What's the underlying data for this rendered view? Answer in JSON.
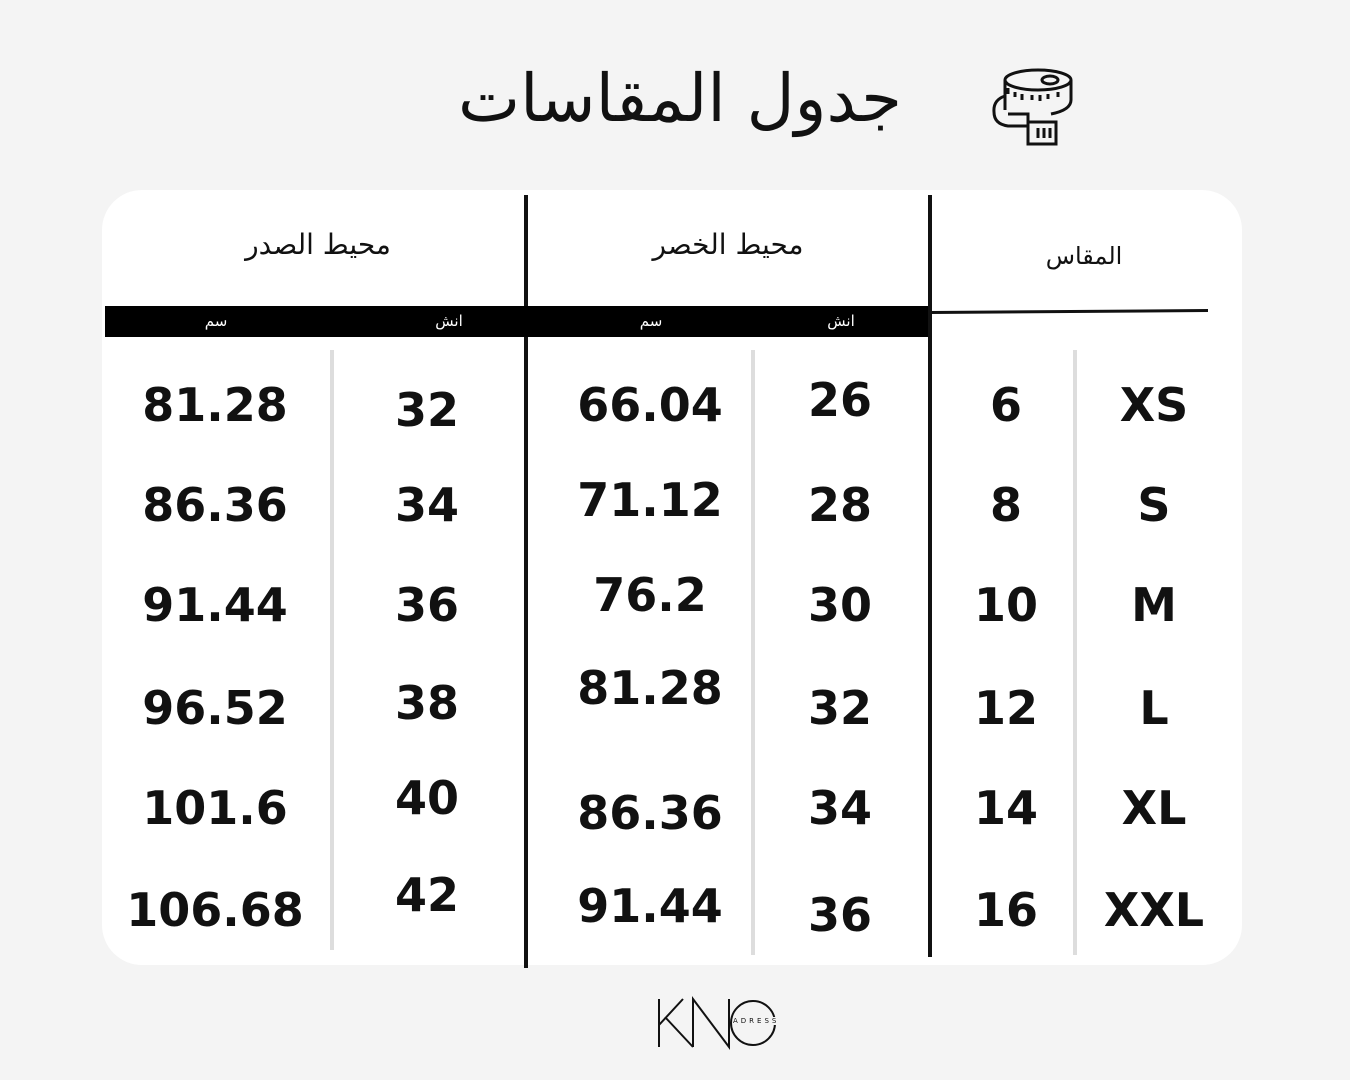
{
  "title": "جدول المقاسات",
  "icons": {
    "tape": "measuring-tape-icon"
  },
  "headers": {
    "size": "المقاس",
    "waist": "محيط الخصر",
    "chest": "محيط الصدر"
  },
  "units": {
    "inch": "انش",
    "cm": "سم"
  },
  "rows": [
    {
      "size": "XS",
      "num": "6",
      "waist_in": "26",
      "waist_cm": "66.04",
      "chest_in": "32",
      "chest_cm": "81.28"
    },
    {
      "size": "S",
      "num": "8",
      "waist_in": "28",
      "waist_cm": "71.12",
      "chest_in": "34",
      "chest_cm": "86.36"
    },
    {
      "size": "M",
      "num": "10",
      "waist_in": "30",
      "waist_cm": "76.2",
      "chest_in": "36",
      "chest_cm": "91.44"
    },
    {
      "size": "L",
      "num": "12",
      "waist_in": "32",
      "waist_cm": "81.28",
      "chest_in": "38",
      "chest_cm": "96.52"
    },
    {
      "size": "XL",
      "num": "14",
      "waist_in": "34",
      "waist_cm": "86.36",
      "chest_in": "40",
      "chest_cm": "101.6"
    },
    {
      "size": "XXL",
      "num": "16",
      "waist_in": "36",
      "waist_cm": "91.44",
      "chest_in": "42",
      "chest_cm": "106.68"
    }
  ],
  "logo": {
    "main": "KNO",
    "sub": "ADRESS"
  }
}
